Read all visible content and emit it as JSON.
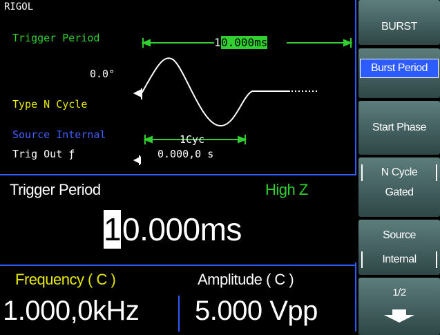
{
  "header": {
    "brand": "RIGOL"
  },
  "waveform": {
    "period_label": "Trigger Period",
    "period_cursor": "1",
    "period_rest": "0.000ms",
    "phase": "0.0°",
    "type": "Type N Cycle",
    "source": "Source Internal",
    "cycles": "1Cyc",
    "trig_out": "Trig Out ƒ",
    "delay": "0.000,0 s"
  },
  "editor": {
    "label": "Trigger Period",
    "load": "High Z",
    "cursor": "1",
    "rest": "0.000ms"
  },
  "status": {
    "frequency_label": "Frequency ( C )",
    "frequency": "1.000,0kHz",
    "amplitude_label": "Amplitude ( C )",
    "amplitude": "5.000 Vpp"
  },
  "menu": {
    "title": "BURST",
    "items": [
      "Burst Period",
      "Start Phase"
    ],
    "mode": [
      "N Cycle",
      "Gated"
    ],
    "source": [
      "Source",
      "Internal"
    ],
    "page": "1/2"
  }
}
